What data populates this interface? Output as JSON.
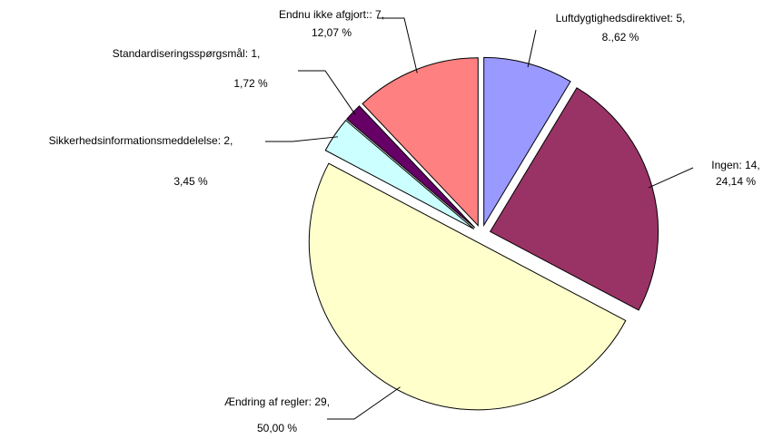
{
  "chart_data": {
    "type": "pie",
    "categories": [
      "Luftdygtighedsdirektivet: 5,",
      "Ingen: 14,",
      "Ændring af regler: 29,",
      "Sikkerhedsinformationsmeddelelse: 2,",
      "Standardiseringsspørgsmål: 1,",
      "Endnu ikke afgjort:: 7,"
    ],
    "values": [
      5,
      14,
      29,
      2,
      1,
      7
    ],
    "value_labels": [
      "8.,62 %",
      "24,14 %",
      "50,00 %",
      "3,45 %",
      "1,72 %",
      "12,07 %"
    ],
    "colors": [
      "#9999ff",
      "#993366",
      "#ffffcc",
      "#ccffff",
      "#660066",
      "#ff8080"
    ]
  }
}
